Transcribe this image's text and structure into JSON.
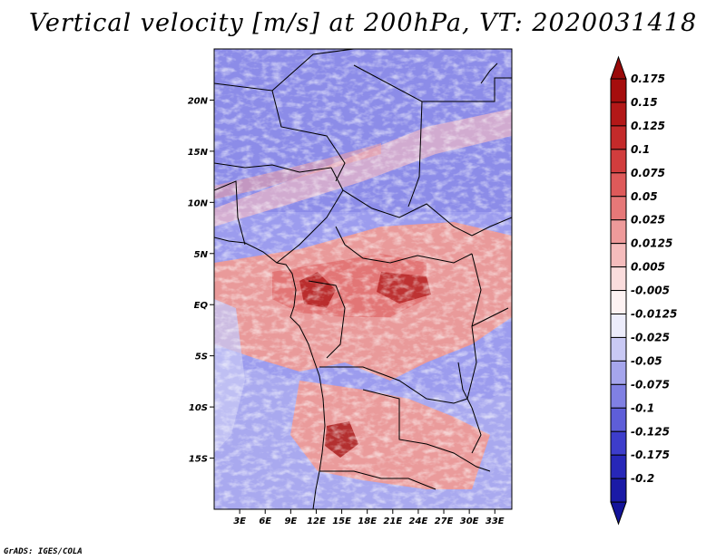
{
  "title": "Vertical velocity [m/s] at 200hPa, VT: 2020031418",
  "credit": "GrADS: IGES/COLA",
  "map": {
    "lat_range": [
      -20,
      25
    ],
    "lon_range": [
      0,
      35
    ],
    "lat_ticks": [
      {
        "value": 20,
        "label": "20N"
      },
      {
        "value": 15,
        "label": "15N"
      },
      {
        "value": 10,
        "label": "10N"
      },
      {
        "value": 5,
        "label": "5N"
      },
      {
        "value": 0,
        "label": "EQ"
      },
      {
        "value": -5,
        "label": "5S"
      },
      {
        "value": -10,
        "label": "10S"
      },
      {
        "value": -15,
        "label": "15S"
      }
    ],
    "lon_ticks": [
      {
        "value": 3,
        "label": "3E"
      },
      {
        "value": 6,
        "label": "6E"
      },
      {
        "value": 9,
        "label": "9E"
      },
      {
        "value": 12,
        "label": "12E"
      },
      {
        "value": 15,
        "label": "15E"
      },
      {
        "value": 18,
        "label": "18E"
      },
      {
        "value": 21,
        "label": "21E"
      },
      {
        "value": 24,
        "label": "24E"
      },
      {
        "value": 27,
        "label": "27E"
      },
      {
        "value": 30,
        "label": "30E"
      },
      {
        "value": 33,
        "label": "33E"
      }
    ]
  },
  "colorbar": {
    "levels": [
      {
        "label": "0.175",
        "color": "#a50d0d"
      },
      {
        "label": "0.15",
        "color": "#b31818"
      },
      {
        "label": "0.125",
        "color": "#c42a2a"
      },
      {
        "label": "0.1",
        "color": "#d13d3d"
      },
      {
        "label": "0.075",
        "color": "#de5a5a"
      },
      {
        "label": "0.05",
        "color": "#e67878"
      },
      {
        "label": "0.025",
        "color": "#ee9a9a"
      },
      {
        "label": "0.0125",
        "color": "#f5bcbc"
      },
      {
        "label": "0.005",
        "color": "#fadcdc"
      },
      {
        "label": "-0.005",
        "color": "#fdf2f2"
      },
      {
        "label": "-0.0125",
        "color": "#ececfb"
      },
      {
        "label": "-0.025",
        "color": "#c9c9f4"
      },
      {
        "label": "-0.05",
        "color": "#a5a5ec"
      },
      {
        "label": "-0.075",
        "color": "#8080e3"
      },
      {
        "label": "-0.1",
        "color": "#5e5ed8"
      },
      {
        "label": "-0.125",
        "color": "#3d3dcb"
      },
      {
        "label": "-0.175",
        "color": "#2727b8"
      },
      {
        "label": "-0.2",
        "color": "#1a1aa6"
      }
    ],
    "top_arrow_color": "#9a0a0a",
    "bottom_arrow_color": "#14149a"
  }
}
